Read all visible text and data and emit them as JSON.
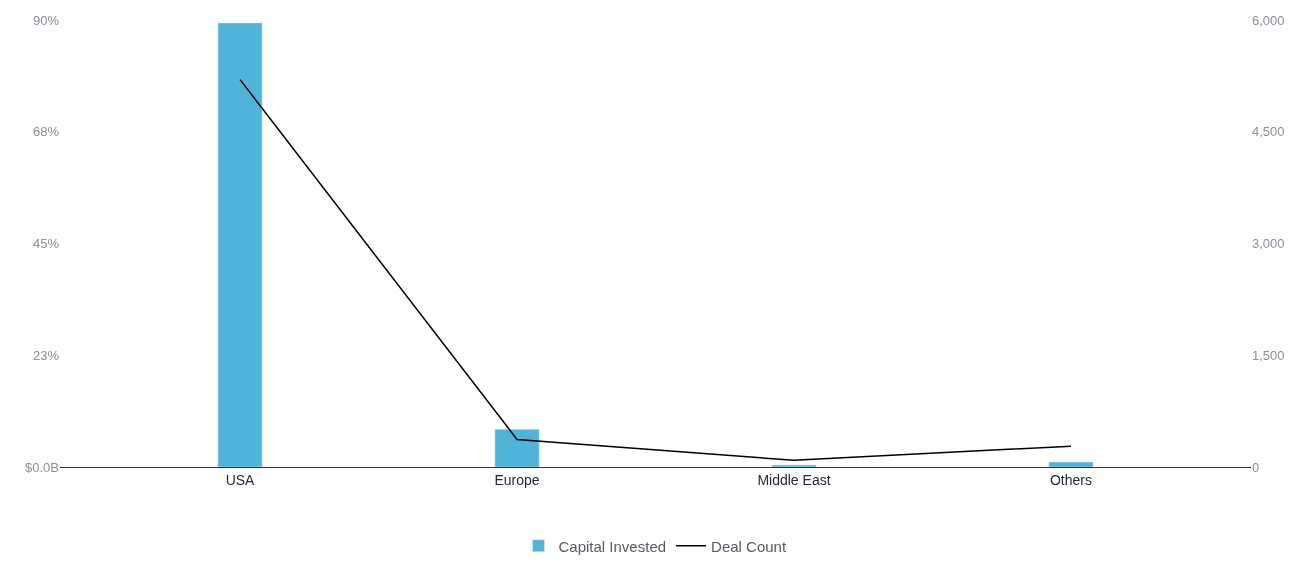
{
  "chart_data": {
    "type": "bar",
    "categories": [
      "USA",
      "Europe",
      "Middle East",
      "Others"
    ],
    "series": [
      {
        "name": "Capital Invested",
        "color": "#4fb4d8",
        "values": [
          89.4,
          7.6,
          0.4,
          1.0
        ]
      },
      {
        "name": "Deal Count",
        "type": "line",
        "axis": "y2",
        "color": "#000000",
        "values": [
          5200,
          370,
          90,
          280
        ]
      }
    ],
    "ylim": [
      0,
      90
    ],
    "yticks": [
      {
        "value": 0,
        "label": "$0.0B"
      },
      {
        "value": 22.5,
        "label": "23%"
      },
      {
        "value": 45,
        "label": "45%"
      },
      {
        "value": 67.5,
        "label": "68%"
      },
      {
        "value": 90,
        "label": "90%"
      }
    ],
    "y2lim": [
      0,
      6000
    ],
    "y2ticks": [
      0,
      {
        "value": 1500,
        "label": "1,500"
      },
      {
        "value": 3000,
        "label": "3,000"
      },
      {
        "value": 4500,
        "label": "4,500"
      },
      {
        "value": 6000,
        "label": "6,000"
      }
    ],
    "legend": "bottom",
    "marker": "none"
  }
}
